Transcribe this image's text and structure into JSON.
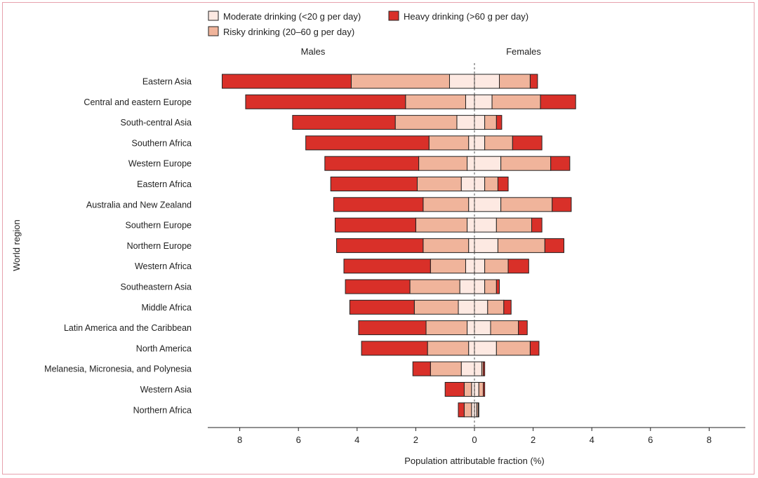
{
  "chart_data": {
    "type": "bar",
    "orientation": "horizontal-diverging-stacked",
    "xlabel": "Population attributable fraction (%)",
    "ylabel": "World region",
    "xlim": [
      -9,
      9
    ],
    "x_ticks": [
      "8",
      "6",
      "4",
      "2",
      "0",
      "2",
      "4",
      "6",
      "8"
    ],
    "left_panel_label": "Males",
    "right_panel_label": "Females",
    "legend_position": "top",
    "colors": {
      "moderate": "#fde9e2",
      "risky": "#f0b49b",
      "heavy": "#d93029",
      "border": "#222222",
      "frame": "#e7a1ad"
    },
    "series": [
      {
        "key": "moderate",
        "name": "Moderate drinking (<20 g per day)"
      },
      {
        "key": "risky",
        "name": "Risky drinking (20–60 g per day)"
      },
      {
        "key": "heavy",
        "name": "Heavy drinking (>60 g per day)"
      }
    ],
    "categories": [
      "Eastern Asia",
      "Central and eastern Europe",
      "South-central Asia",
      "Southern Africa",
      "Western Europe",
      "Eastern Africa",
      "Australia and New Zealand",
      "Southern Europe",
      "Northern Europe",
      "Western Africa",
      "Southeastern Asia",
      "Middle Africa",
      "Latin America and the Caribbean",
      "North America",
      "Melanesia, Micronesia, and Polynesia",
      "Western Asia",
      "Northern Africa"
    ],
    "males": {
      "moderate": [
        0.85,
        0.3,
        0.6,
        0.2,
        0.25,
        0.45,
        0.2,
        0.25,
        0.2,
        0.3,
        0.5,
        0.55,
        0.25,
        0.2,
        0.45,
        0.1,
        0.1
      ],
      "risky": [
        3.35,
        2.05,
        2.1,
        1.35,
        1.65,
        1.5,
        1.55,
        1.75,
        1.55,
        1.2,
        1.7,
        1.5,
        1.4,
        1.4,
        1.05,
        0.25,
        0.25
      ],
      "heavy": [
        4.4,
        5.45,
        3.5,
        4.2,
        3.2,
        2.95,
        3.05,
        2.75,
        2.95,
        2.95,
        2.2,
        2.2,
        2.3,
        2.25,
        0.6,
        0.65,
        0.2
      ]
    },
    "females": {
      "moderate": [
        0.85,
        0.6,
        0.35,
        0.35,
        0.9,
        0.35,
        0.9,
        0.75,
        0.8,
        0.35,
        0.35,
        0.45,
        0.55,
        0.75,
        0.25,
        0.15,
        0.08
      ],
      "risky": [
        1.05,
        1.65,
        0.4,
        0.95,
        1.7,
        0.45,
        1.75,
        1.2,
        1.6,
        0.8,
        0.4,
        0.55,
        0.95,
        1.15,
        0.05,
        0.15,
        0.05
      ],
      "heavy": [
        0.25,
        1.2,
        0.18,
        1.0,
        0.65,
        0.35,
        0.65,
        0.35,
        0.65,
        0.7,
        0.1,
        0.25,
        0.3,
        0.3,
        0.05,
        0.05,
        0.02
      ]
    }
  }
}
